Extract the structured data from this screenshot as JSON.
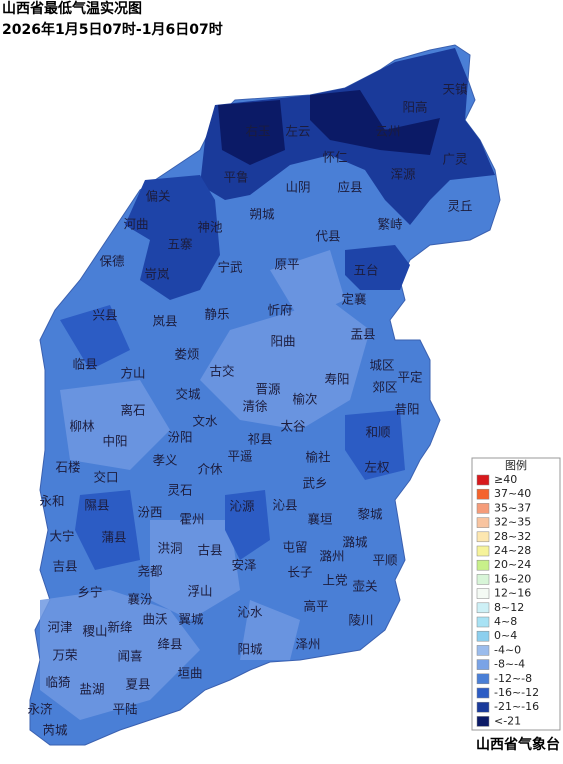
{
  "header": {
    "title": "山西省最低气温实况图",
    "subtitle": "2026年1月5日07时-1月6日07时"
  },
  "map": {
    "labels": [
      "天镇",
      "阳高",
      "右玉",
      "左云",
      "云州",
      "怀仁",
      "广灵",
      "平鲁",
      "山阴",
      "应县",
      "浑源",
      "偏关",
      "朔城",
      "繁峙",
      "灵丘",
      "河曲",
      "神池",
      "五寨",
      "代县",
      "保德",
      "宁武",
      "原平",
      "五台",
      "岢岚",
      "定襄",
      "忻府",
      "兴县",
      "岚县",
      "静乐",
      "盂县",
      "临县",
      "方山",
      "娄烦",
      "阳曲",
      "古交",
      "城区",
      "郊区",
      "平定",
      "寿阳",
      "晋源",
      "清徐",
      "榆次",
      "昔阳",
      "离石",
      "交城",
      "柳林",
      "中阳",
      "汾阳",
      "文水",
      "祁县",
      "太谷",
      "和顺",
      "石楼",
      "孝义",
      "平遥",
      "介休",
      "榆社",
      "左权",
      "交口",
      "灵石",
      "武乡",
      "永和",
      "隰县",
      "汾西",
      "霍州",
      "沁源",
      "沁县",
      "黎城",
      "大宁",
      "蒲县",
      "襄垣",
      "洪洞",
      "古县",
      "屯留",
      "潞州",
      "潞城",
      "平顺",
      "吉县",
      "尧都",
      "安泽",
      "长子",
      "上党",
      "乡宁",
      "襄汾",
      "浮山",
      "壶关",
      "高平",
      "河津",
      "稷山",
      "新绛",
      "曲沃",
      "翼城",
      "沁水",
      "陵川",
      "绛县",
      "泽州",
      "万荣",
      "闻喜",
      "阳城",
      "临猗",
      "盐湖",
      "夏县",
      "垣曲",
      "永济",
      "平陆",
      "芮城"
    ]
  },
  "legend": {
    "title": "图例",
    "items": [
      {
        "label": "≥40",
        "color": "#d7191c"
      },
      {
        "label": "37~40",
        "color": "#f4632c"
      },
      {
        "label": "35~37",
        "color": "#f59c7a"
      },
      {
        "label": "32~35",
        "color": "#f8c4a0"
      },
      {
        "label": "28~32",
        "color": "#fde7b0"
      },
      {
        "label": "24~28",
        "color": "#f6f39a"
      },
      {
        "label": "20~24",
        "color": "#c8f08a"
      },
      {
        "label": "16~20",
        "color": "#d8f5d8"
      },
      {
        "label": "12~16",
        "color": "#f4faf4"
      },
      {
        "label": "8~12",
        "color": "#cdf0f6"
      },
      {
        "label": "4~8",
        "color": "#a8e2f4"
      },
      {
        "label": "0~4",
        "color": "#8ccfee"
      },
      {
        "label": "-4~0",
        "color": "#9bbcec"
      },
      {
        "label": "-8~-4",
        "color": "#7aa3e6"
      },
      {
        "label": "-12~-8",
        "color": "#4a7fd6"
      },
      {
        "label": "-16~-12",
        "color": "#2c5cc4"
      },
      {
        "label": "-21~-16",
        "color": "#1a3a9a"
      },
      {
        "label": "<-21",
        "color": "#0b1a66"
      }
    ]
  },
  "footer": {
    "source": "山西省气象台"
  }
}
